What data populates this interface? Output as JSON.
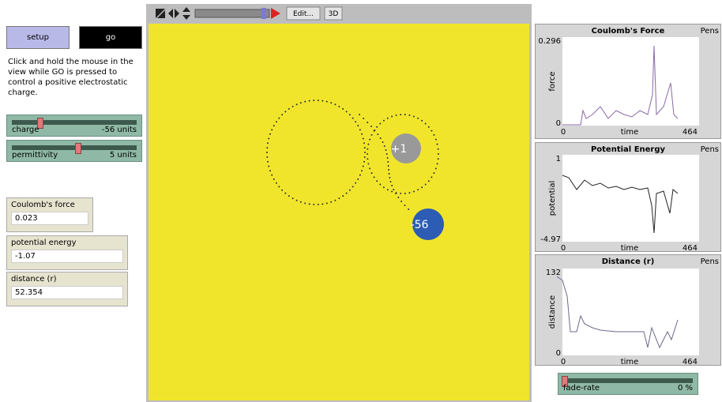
{
  "buttons": {
    "setup": "setup",
    "go": "go"
  },
  "instructions": "Click and hold the mouse in the view while GO is pressed to control a positive electrostatic charge.",
  "sliders": [
    {
      "label": "charge",
      "value": "-56 units"
    },
    {
      "label": "permittivity",
      "value": "5 units"
    }
  ],
  "monitors": [
    {
      "label": "Coulomb's force",
      "value": "0.023"
    },
    {
      "label": "potential energy",
      "value": "-1.07"
    },
    {
      "label": "distance (r)",
      "value": "52.354"
    }
  ],
  "view": {
    "toolbar": {
      "edit": "Edit...",
      "three_d": "3D"
    },
    "particles": [
      "+1",
      "-56"
    ]
  },
  "plots": [
    {
      "title": "Coulomb's Force",
      "pens": "Pens",
      "ylabel": "force",
      "xlabel": "time",
      "ymax": "0.296",
      "ymin": "0",
      "xmin": "0",
      "xmax": "464"
    },
    {
      "title": "Potential Energy",
      "pens": "Pens",
      "ylabel": "potential",
      "xlabel": "time",
      "ymax": "1",
      "ymin": "-4.97",
      "xmin": "0",
      "xmax": "464"
    },
    {
      "title": "Distance (r)",
      "pens": "Pens",
      "ylabel": "distance",
      "xlabel": "time",
      "ymax": "132",
      "ymin": "0",
      "xmin": "0",
      "xmax": "464"
    }
  ],
  "fade_rate": {
    "label": "fade-rate",
    "value": "0 %"
  }
}
